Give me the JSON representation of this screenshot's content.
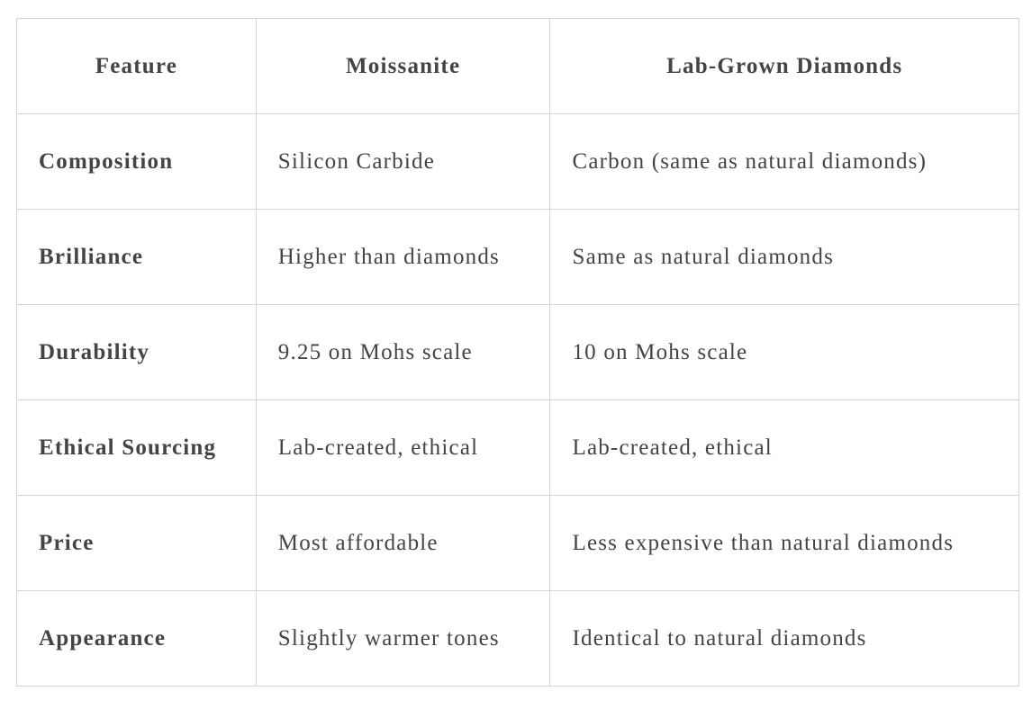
{
  "table": {
    "header": [
      "Feature",
      "Moissanite",
      "Lab-Grown Diamonds"
    ],
    "rows": [
      [
        "Composition",
        "Silicon Carbide",
        "Carbon (same as natural diamonds)"
      ],
      [
        "Brilliance",
        "Higher than diamonds",
        "Same as natural diamonds"
      ],
      [
        "Durability",
        "9.25 on Mohs scale",
        "10 on Mohs scale"
      ],
      [
        "Ethical Sourcing",
        "Lab-created, ethical",
        "Lab-created, ethical"
      ],
      [
        "Price",
        "Most affordable",
        "Less expensive than natural diamonds"
      ],
      [
        "Appearance",
        "Slightly warmer tones",
        "Identical to natural diamonds"
      ]
    ]
  }
}
